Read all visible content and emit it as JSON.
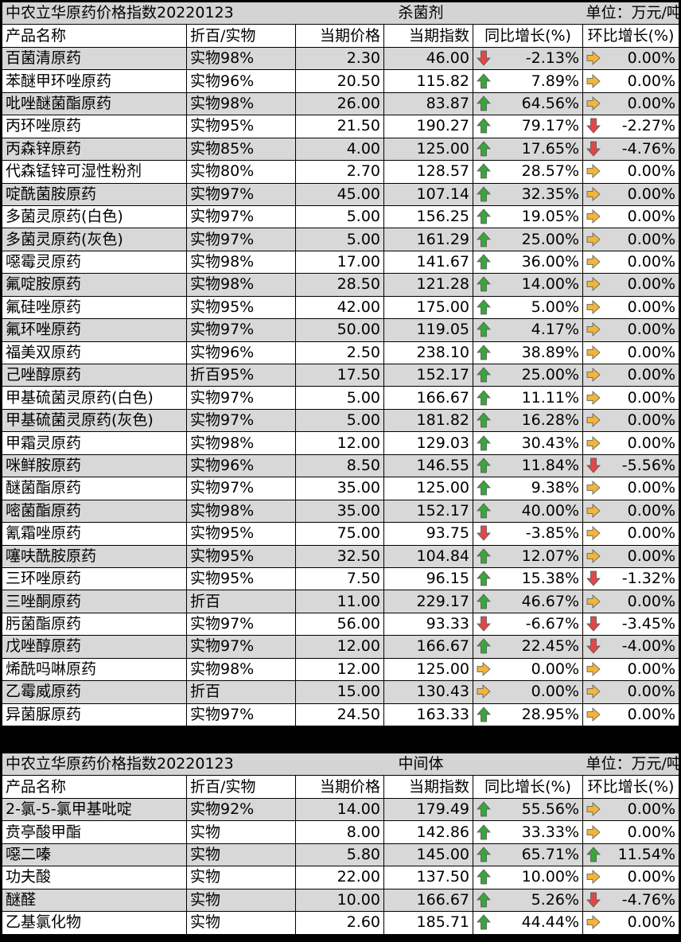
{
  "tables": [
    {
      "title": "中农立华原药价格指数20220123",
      "category": "杀菌剂",
      "unit": "单位：万元/吨",
      "headers": [
        "产品名称",
        "折百/实物",
        "当期价格",
        "当期指数",
        "同比增长(%)",
        "环比增长(%)"
      ],
      "rows": [
        {
          "name": "百菌清原药",
          "spec": "实物98%",
          "price": "2.30",
          "index": "46.00",
          "yoy_dir": "down",
          "yoy": "-2.13%",
          "mom_dir": "flat",
          "mom": "0.00%"
        },
        {
          "name": "苯醚甲环唑原药",
          "spec": "实物96%",
          "price": "20.50",
          "index": "115.82",
          "yoy_dir": "up",
          "yoy": "7.89%",
          "mom_dir": "flat",
          "mom": "0.00%"
        },
        {
          "name": "吡唑醚菌酯原药",
          "spec": "实物98%",
          "price": "26.00",
          "index": "83.87",
          "yoy_dir": "up",
          "yoy": "64.56%",
          "mom_dir": "flat",
          "mom": "0.00%"
        },
        {
          "name": "丙环唑原药",
          "spec": "实物95%",
          "price": "21.50",
          "index": "190.27",
          "yoy_dir": "up",
          "yoy": "79.17%",
          "mom_dir": "down",
          "mom": "-2.27%"
        },
        {
          "name": "丙森锌原药",
          "spec": "实物85%",
          "price": "4.00",
          "index": "125.00",
          "yoy_dir": "up",
          "yoy": "17.65%",
          "mom_dir": "down",
          "mom": "-4.76%"
        },
        {
          "name": "代森锰锌可湿性粉剂",
          "spec": "实物80%",
          "price": "2.70",
          "index": "128.57",
          "yoy_dir": "up",
          "yoy": "28.57%",
          "mom_dir": "flat",
          "mom": "0.00%"
        },
        {
          "name": "啶酰菌胺原药",
          "spec": "实物97%",
          "price": "45.00",
          "index": "107.14",
          "yoy_dir": "up",
          "yoy": "32.35%",
          "mom_dir": "flat",
          "mom": "0.00%"
        },
        {
          "name": "多菌灵原药(白色)",
          "spec": "实物97%",
          "price": "5.00",
          "index": "156.25",
          "yoy_dir": "up",
          "yoy": "19.05%",
          "mom_dir": "flat",
          "mom": "0.00%"
        },
        {
          "name": "多菌灵原药(灰色)",
          "spec": "实物97%",
          "price": "5.00",
          "index": "161.29",
          "yoy_dir": "up",
          "yoy": "25.00%",
          "mom_dir": "flat",
          "mom": "0.00%"
        },
        {
          "name": "噁霉灵原药",
          "spec": "实物98%",
          "price": "17.00",
          "index": "141.67",
          "yoy_dir": "up",
          "yoy": "36.00%",
          "mom_dir": "flat",
          "mom": "0.00%"
        },
        {
          "name": "氟啶胺原药",
          "spec": "实物98%",
          "price": "28.50",
          "index": "121.28",
          "yoy_dir": "up",
          "yoy": "14.00%",
          "mom_dir": "flat",
          "mom": "0.00%"
        },
        {
          "name": "氟硅唑原药",
          "spec": "实物95%",
          "price": "42.00",
          "index": "175.00",
          "yoy_dir": "up",
          "yoy": "5.00%",
          "mom_dir": "flat",
          "mom": "0.00%"
        },
        {
          "name": "氟环唑原药",
          "spec": "实物97%",
          "price": "50.00",
          "index": "119.05",
          "yoy_dir": "up",
          "yoy": "4.17%",
          "mom_dir": "flat",
          "mom": "0.00%"
        },
        {
          "name": "福美双原药",
          "spec": "实物96%",
          "price": "2.50",
          "index": "238.10",
          "yoy_dir": "up",
          "yoy": "38.89%",
          "mom_dir": "flat",
          "mom": "0.00%"
        },
        {
          "name": "己唑醇原药",
          "spec": "折百95%",
          "price": "17.50",
          "index": "152.17",
          "yoy_dir": "up",
          "yoy": "25.00%",
          "mom_dir": "flat",
          "mom": "0.00%"
        },
        {
          "name": "甲基硫菌灵原药(白色)",
          "spec": "实物97%",
          "price": "5.00",
          "index": "166.67",
          "yoy_dir": "up",
          "yoy": "11.11%",
          "mom_dir": "flat",
          "mom": "0.00%"
        },
        {
          "name": "甲基硫菌灵原药(灰色)",
          "spec": "实物97%",
          "price": "5.00",
          "index": "181.82",
          "yoy_dir": "up",
          "yoy": "16.28%",
          "mom_dir": "flat",
          "mom": "0.00%"
        },
        {
          "name": "甲霜灵原药",
          "spec": "实物98%",
          "price": "12.00",
          "index": "129.03",
          "yoy_dir": "up",
          "yoy": "30.43%",
          "mom_dir": "flat",
          "mom": "0.00%"
        },
        {
          "name": "咪鲜胺原药",
          "spec": "实物96%",
          "price": "8.50",
          "index": "146.55",
          "yoy_dir": "up",
          "yoy": "11.84%",
          "mom_dir": "down",
          "mom": "-5.56%"
        },
        {
          "name": "醚菌酯原药",
          "spec": "实物97%",
          "price": "35.00",
          "index": "125.00",
          "yoy_dir": "up",
          "yoy": "9.38%",
          "mom_dir": "flat",
          "mom": "0.00%"
        },
        {
          "name": "嘧菌酯原药",
          "spec": "实物98%",
          "price": "35.00",
          "index": "152.17",
          "yoy_dir": "up",
          "yoy": "40.00%",
          "mom_dir": "flat",
          "mom": "0.00%"
        },
        {
          "name": "氰霜唑原药",
          "spec": "实物95%",
          "price": "75.00",
          "index": "93.75",
          "yoy_dir": "down",
          "yoy": "-3.85%",
          "mom_dir": "flat",
          "mom": "0.00%"
        },
        {
          "name": "噻呋酰胺原药",
          "spec": "实物95%",
          "price": "32.50",
          "index": "104.84",
          "yoy_dir": "up",
          "yoy": "12.07%",
          "mom_dir": "flat",
          "mom": "0.00%"
        },
        {
          "name": "三环唑原药",
          "spec": "实物95%",
          "price": "7.50",
          "index": "96.15",
          "yoy_dir": "up",
          "yoy": "15.38%",
          "mom_dir": "down",
          "mom": "-1.32%"
        },
        {
          "name": "三唑酮原药",
          "spec": "折百",
          "price": "11.00",
          "index": "229.17",
          "yoy_dir": "up",
          "yoy": "46.67%",
          "mom_dir": "flat",
          "mom": "0.00%"
        },
        {
          "name": "肟菌酯原药",
          "spec": "实物97%",
          "price": "56.00",
          "index": "93.33",
          "yoy_dir": "down",
          "yoy": "-6.67%",
          "mom_dir": "down",
          "mom": "-3.45%"
        },
        {
          "name": "戊唑醇原药",
          "spec": "实物97%",
          "price": "12.00",
          "index": "166.67",
          "yoy_dir": "up",
          "yoy": "22.45%",
          "mom_dir": "down",
          "mom": "-4.00%"
        },
        {
          "name": "烯酰吗啉原药",
          "spec": "实物98%",
          "price": "12.00",
          "index": "125.00",
          "yoy_dir": "flat",
          "yoy": "0.00%",
          "mom_dir": "flat",
          "mom": "0.00%"
        },
        {
          "name": "乙霉威原药",
          "spec": "折百",
          "price": "15.00",
          "index": "130.43",
          "yoy_dir": "flat",
          "yoy": "0.00%",
          "mom_dir": "flat",
          "mom": "0.00%"
        },
        {
          "name": "异菌脲原药",
          "spec": "实物97%",
          "price": "24.50",
          "index": "163.33",
          "yoy_dir": "up",
          "yoy": "28.95%",
          "mom_dir": "flat",
          "mom": "0.00%"
        }
      ]
    },
    {
      "title": "中农立华原药价格指数20220123",
      "category": "中间体",
      "unit": "单位：万元/吨",
      "headers": [
        "产品名称",
        "折百/实物",
        "当期价格",
        "当期指数",
        "同比增长(%)",
        "环比增长(%)"
      ],
      "rows": [
        {
          "name": "2-氯-5-氯甲基吡啶",
          "spec": "实物92%",
          "price": "14.00",
          "index": "179.49",
          "yoy_dir": "up",
          "yoy": "55.56%",
          "mom_dir": "flat",
          "mom": "0.00%"
        },
        {
          "name": "贲亭酸甲酯",
          "spec": "实物",
          "price": "8.00",
          "index": "142.86",
          "yoy_dir": "up",
          "yoy": "33.33%",
          "mom_dir": "flat",
          "mom": "0.00%"
        },
        {
          "name": "噁二嗪",
          "spec": "实物",
          "price": "5.80",
          "index": "145.00",
          "yoy_dir": "up",
          "yoy": "65.71%",
          "mom_dir": "up",
          "mom": "11.54%"
        },
        {
          "name": "功夫酸",
          "spec": "实物",
          "price": "22.00",
          "index": "137.50",
          "yoy_dir": "up",
          "yoy": "10.00%",
          "mom_dir": "flat",
          "mom": "0.00%"
        },
        {
          "name": "醚醛",
          "spec": "实物",
          "price": "10.00",
          "index": "166.67",
          "yoy_dir": "up",
          "yoy": "5.26%",
          "mom_dir": "down",
          "mom": "-4.76%"
        },
        {
          "name": "乙基氯化物",
          "spec": "实物",
          "price": "2.60",
          "index": "185.71",
          "yoy_dir": "up",
          "yoy": "44.44%",
          "mom_dir": "flat",
          "mom": "0.00%"
        }
      ]
    }
  ],
  "colors": {
    "up": "#3aa53a",
    "down": "#e04848",
    "flat": "#f2b53a",
    "shade": "#d8d8d8"
  },
  "icons": {
    "up": "arrow-up-icon",
    "down": "arrow-down-icon",
    "flat": "arrow-right-icon"
  }
}
